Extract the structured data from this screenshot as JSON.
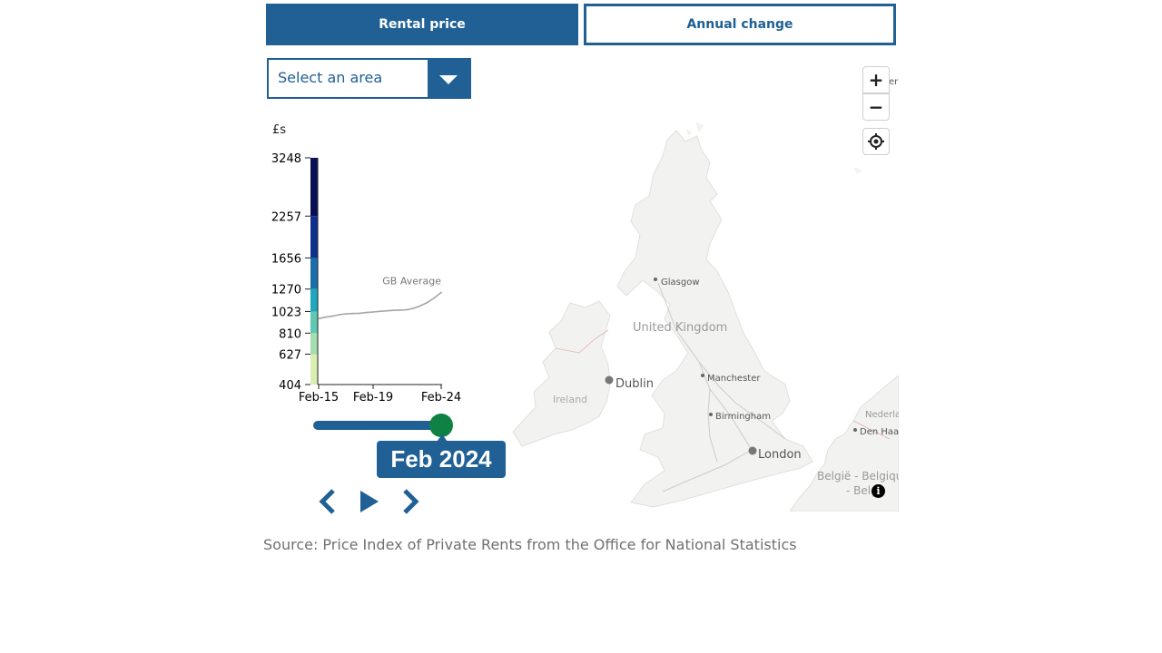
{
  "tabs": {
    "rental_price": "Rental price",
    "annual_change": "Annual change"
  },
  "area_select": {
    "placeholder": "Select an area"
  },
  "map": {
    "labels": {
      "glasgow": "Glasgow",
      "uk": "United Kingdom",
      "manchester": "Manchester",
      "dublin": "Dublin",
      "ireland": "Ireland",
      "birmingham": "Birmingham",
      "london": "London",
      "netherlands": "Nederland",
      "den_haag": "Den Haag",
      "belgium": "België - Belgique",
      "belgie_short": "- Belg",
      "top_right_clip": "er"
    },
    "controls": {
      "zoom_in": "+",
      "zoom_out": "−",
      "info": "i"
    }
  },
  "legend": {
    "unit_label": "£s",
    "ticks": [
      "3248",
      "2257",
      "1656",
      "1270",
      "1023",
      "810",
      "627",
      "404"
    ],
    "colors": [
      "#0a0f55",
      "#0f2f8e",
      "#1a6fab",
      "#1fa8bd",
      "#5ec8b5",
      "#a5dcb0",
      "#dbeeb2"
    ]
  },
  "chart_data": {
    "type": "line",
    "series": [
      {
        "name": "GB Average",
        "x": [
          "Feb-15",
          "Aug-15",
          "Feb-16",
          "Aug-16",
          "Feb-17",
          "Aug-17",
          "Feb-18",
          "Aug-18",
          "Feb-19",
          "Aug-19",
          "Feb-20",
          "Aug-20",
          "Feb-21",
          "Aug-21",
          "Feb-22",
          "Aug-22",
          "Feb-23",
          "Aug-23",
          "Feb-24"
        ],
        "values": [
          950,
          965,
          975,
          990,
          998,
          1002,
          1005,
          1012,
          1018,
          1025,
          1030,
          1035,
          1038,
          1042,
          1058,
          1085,
          1120,
          1170,
          1230
        ]
      }
    ],
    "x_tick_labels": [
      "Feb-15",
      "Feb-19",
      "Feb-24"
    ],
    "y_tick_labels": [
      "3248",
      "2257",
      "1656",
      "1270",
      "1023",
      "810",
      "627",
      "404"
    ],
    "ylabel": "£s",
    "ylim": [
      404,
      3248
    ]
  },
  "slider": {
    "selected_label": "Feb 2024",
    "progress": 1.0
  },
  "source": "Source: Price Index of Private Rents from the Office for National Statistics"
}
